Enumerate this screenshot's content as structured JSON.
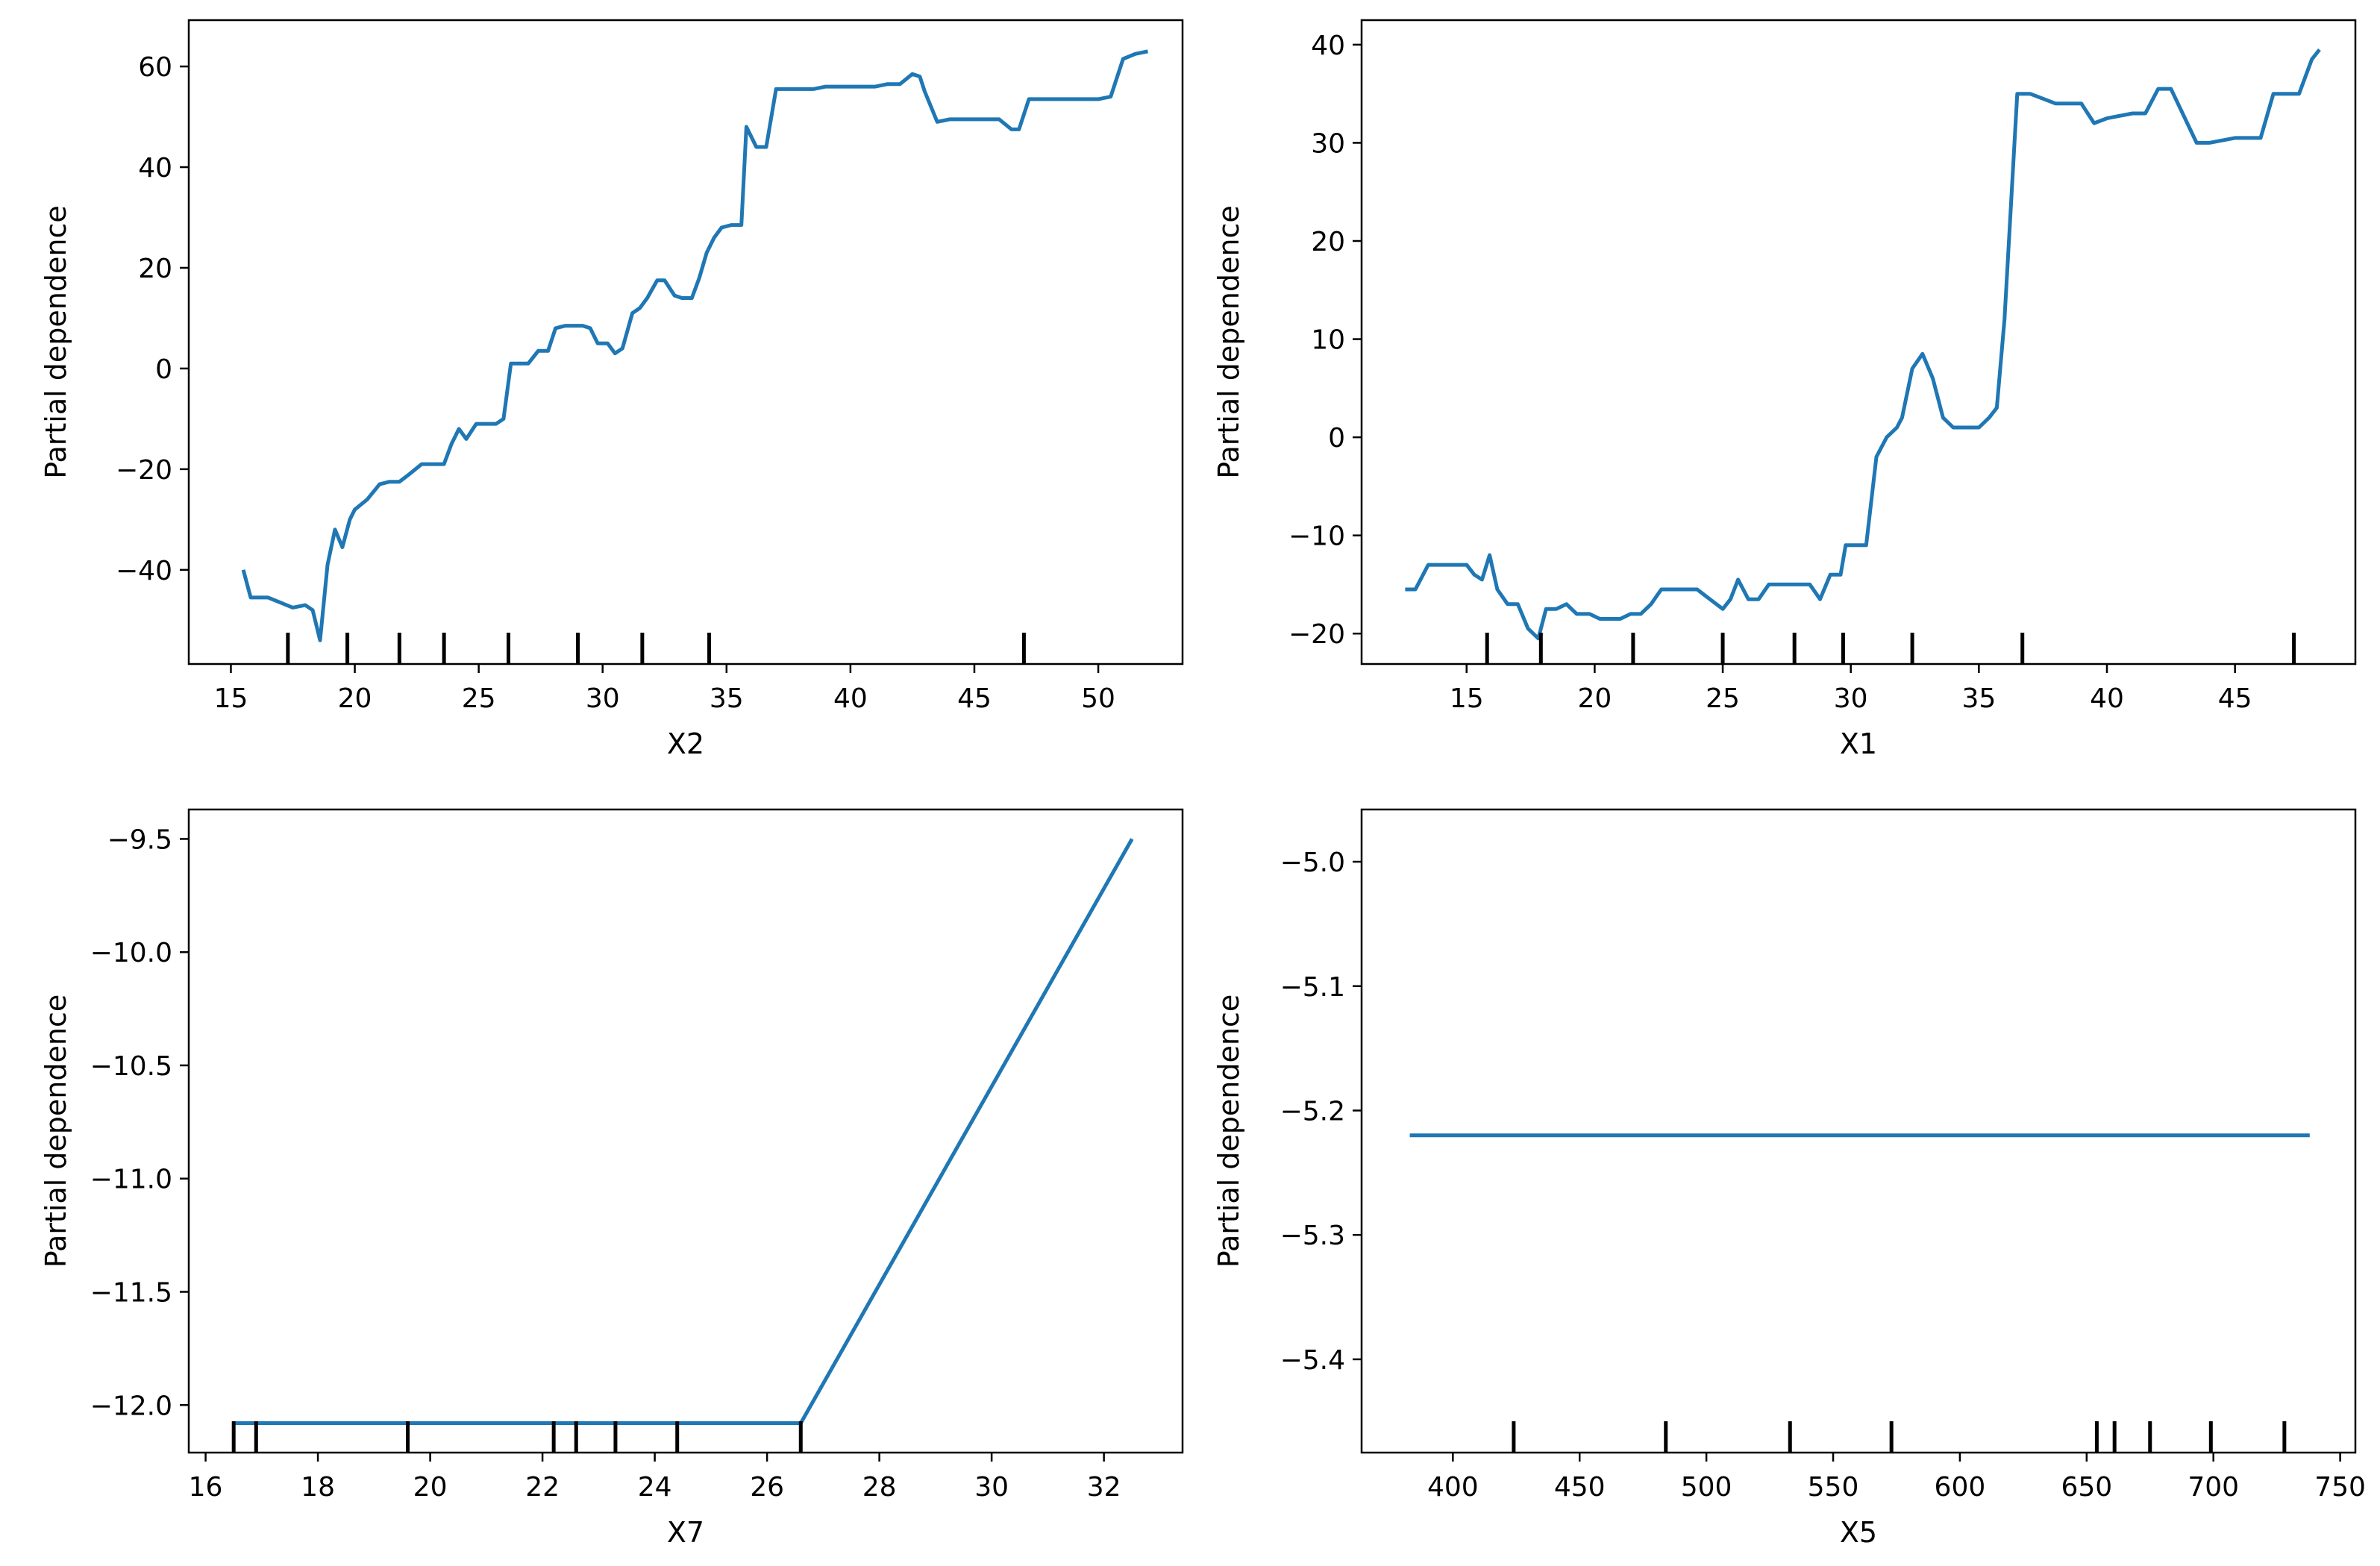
{
  "colors": {
    "line": "#1f77b4",
    "rug": "#000000",
    "frame": "#000000"
  },
  "chart_data": [
    {
      "type": "line",
      "xlabel": "X2",
      "ylabel": "Partial dependence",
      "xlim": [
        13.3,
        53.4
      ],
      "ylim": [
        -58.7,
        69.2
      ],
      "xticks": [
        15,
        20,
        25,
        30,
        35,
        40,
        45,
        50
      ],
      "yticks": [
        -40,
        -20,
        0,
        20,
        40,
        60
      ],
      "grid": false,
      "rug": [
        17.3,
        19.7,
        21.8,
        23.6,
        26.2,
        29.0,
        31.6,
        34.3,
        47.0
      ],
      "x": [
        15.5,
        15.8,
        16.0,
        16.5,
        17.0,
        17.5,
        18.0,
        18.3,
        18.6,
        18.9,
        19.2,
        19.5,
        19.8,
        20.0,
        20.5,
        21.0,
        21.4,
        21.8,
        22.2,
        22.7,
        23.2,
        23.6,
        23.9,
        24.2,
        24.5,
        24.9,
        25.3,
        25.7,
        26.0,
        26.3,
        26.7,
        27.0,
        27.4,
        27.8,
        28.1,
        28.5,
        28.9,
        29.2,
        29.5,
        29.8,
        30.2,
        30.5,
        30.8,
        31.2,
        31.5,
        31.8,
        32.2,
        32.5,
        32.9,
        33.2,
        33.6,
        33.9,
        34.2,
        34.5,
        34.8,
        35.2,
        35.6,
        35.8,
        36.2,
        36.6,
        37.0,
        37.5,
        38.0,
        38.5,
        39.0,
        40.0,
        41.0,
        41.5,
        42.0,
        42.5,
        42.8,
        43.0,
        43.5,
        44.0,
        45.0,
        45.5,
        46.0,
        46.5,
        46.8,
        47.2,
        48.0,
        49.0,
        50.0,
        50.5,
        51.0,
        51.5,
        52.0
      ],
      "values": [
        -40,
        -45.5,
        -45.5,
        -45.5,
        -46.5,
        -47.5,
        -47,
        -48,
        -54,
        -39,
        -32,
        -35.5,
        -30,
        -28,
        -26,
        -23,
        -22.5,
        -22.5,
        -21,
        -19,
        -19,
        -19,
        -15,
        -12,
        -14,
        -11,
        -11,
        -11,
        -10,
        1,
        1,
        1,
        3.5,
        3.5,
        8,
        8.5,
        8.5,
        8.5,
        8,
        5,
        5,
        3,
        4,
        11,
        12,
        14,
        17.5,
        17.5,
        14.5,
        14,
        14,
        18,
        23,
        26,
        28,
        28.5,
        28.5,
        48,
        44,
        44,
        55.5,
        55.5,
        55.5,
        55.5,
        56,
        56,
        56,
        56.5,
        56.5,
        58.5,
        58,
        55,
        49,
        49.5,
        49.5,
        49.5,
        49.5,
        47.5,
        47.5,
        53.5,
        53.5,
        53.5,
        53.5,
        54,
        61.5,
        62.5,
        63
      ]
    },
    {
      "type": "line",
      "xlabel": "X1",
      "ylabel": "Partial dependence",
      "xlim": [
        10.9,
        49.7
      ],
      "ylim": [
        -23.1,
        42.5
      ],
      "xticks": [
        15,
        20,
        25,
        30,
        35,
        40,
        45
      ],
      "yticks": [
        -20,
        -10,
        0,
        10,
        20,
        30,
        40
      ],
      "grid": false,
      "rug": [
        15.8,
        17.9,
        21.5,
        25.0,
        27.8,
        29.7,
        32.4,
        36.7,
        47.3
      ],
      "x": [
        12.6,
        13.0,
        13.5,
        14.0,
        14.5,
        15.0,
        15.3,
        15.6,
        15.9,
        16.2,
        16.6,
        17.0,
        17.4,
        17.8,
        18.1,
        18.5,
        18.9,
        19.3,
        19.8,
        20.2,
        20.6,
        21.0,
        21.4,
        21.8,
        22.2,
        22.6,
        23.0,
        23.4,
        24.0,
        24.5,
        25.0,
        25.3,
        25.6,
        26.0,
        26.4,
        26.8,
        27.2,
        27.6,
        28.0,
        28.4,
        28.8,
        29.2,
        29.6,
        29.8,
        30.2,
        30.6,
        31.0,
        31.4,
        31.8,
        32.0,
        32.4,
        32.8,
        33.2,
        33.6,
        34.0,
        34.5,
        35.0,
        35.4,
        35.7,
        36.0,
        36.5,
        37.0,
        38.0,
        38.5,
        39.0,
        39.5,
        40.0,
        41.0,
        41.5,
        42.0,
        42.5,
        43.5,
        44.0,
        45.0,
        45.5,
        46.0,
        46.5,
        47.0,
        47.5,
        48.0,
        48.3
      ],
      "values": [
        -15.5,
        -15.5,
        -13,
        -13,
        -13,
        -13,
        -14,
        -14.5,
        -12,
        -15.5,
        -17,
        -17,
        -19.5,
        -20.5,
        -17.5,
        -17.5,
        -17,
        -18,
        -18,
        -18.5,
        -18.5,
        -18.5,
        -18,
        -18,
        -17,
        -15.5,
        -15.5,
        -15.5,
        -15.5,
        -16.5,
        -17.5,
        -16.5,
        -14.5,
        -16.5,
        -16.5,
        -15,
        -15,
        -15,
        -15,
        -15,
        -16.5,
        -14,
        -14,
        -11,
        -11,
        -11,
        -2,
        0,
        1,
        2,
        7,
        8.5,
        6,
        2,
        1,
        1,
        1,
        2,
        3,
        12,
        35,
        35,
        34,
        34,
        34,
        32,
        32.5,
        33,
        33,
        35.5,
        35.5,
        30,
        30,
        30.5,
        30.5,
        30.5,
        35,
        35,
        35,
        38.5,
        39.5
      ]
    },
    {
      "type": "line",
      "xlabel": "X7",
      "ylabel": "Partial dependence",
      "xlim": [
        15.7,
        33.4
      ],
      "ylim": [
        -12.21,
        -9.37
      ],
      "xticks": [
        16,
        18,
        20,
        22,
        24,
        26,
        28,
        30,
        32
      ],
      "yticks": [
        -12.0,
        -11.5,
        -11.0,
        -10.5,
        -10.0,
        -9.5
      ],
      "ytick_labels": [
        "−12.0",
        "−11.5",
        "−11.0",
        "−10.5",
        "−10.0",
        "−9.5"
      ],
      "grid": false,
      "rug": [
        16.5,
        16.9,
        19.6,
        22.2,
        22.6,
        23.3,
        24.4,
        26.6
      ],
      "x": [
        16.5,
        26.6,
        32.5
      ],
      "values": [
        -12.08,
        -12.08,
        -9.5
      ]
    },
    {
      "type": "line",
      "xlabel": "X5",
      "ylabel": "Partial dependence",
      "xlim": [
        364,
        756
      ],
      "ylim": [
        -5.475,
        -4.958
      ],
      "xticks": [
        400,
        450,
        500,
        550,
        600,
        650,
        700,
        750
      ],
      "yticks": [
        -5.4,
        -5.3,
        -5.2,
        -5.1,
        -5.0
      ],
      "ytick_labels": [
        "−5.4",
        "−5.3",
        "−5.2",
        "−5.1",
        "−5.0"
      ],
      "grid": false,
      "rug": [
        424,
        484,
        533,
        573,
        654,
        661,
        675,
        699,
        728
      ],
      "x": [
        383,
        738
      ],
      "values": [
        -5.22,
        -5.22
      ]
    }
  ]
}
